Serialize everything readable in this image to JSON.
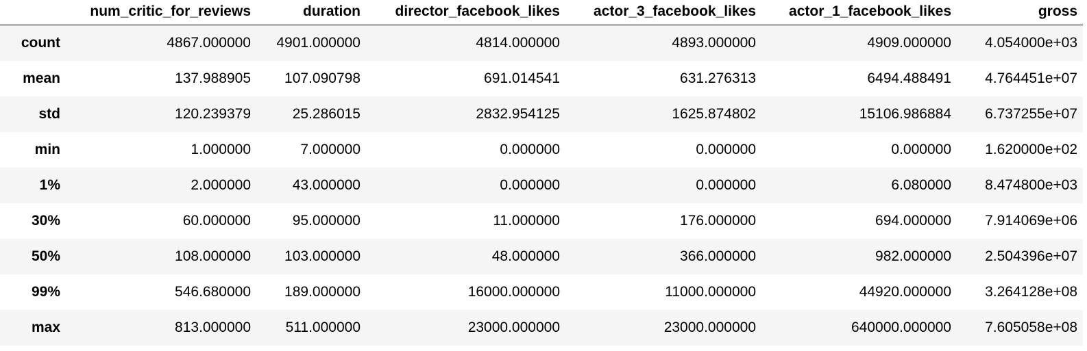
{
  "dataframe": {
    "columns": [
      "num_critic_for_reviews",
      "duration",
      "director_facebook_likes",
      "actor_3_facebook_likes",
      "actor_1_facebook_likes",
      "gross"
    ],
    "rows": [
      {
        "label": "count",
        "cells": [
          "4867.000000",
          "4901.000000",
          "4814.000000",
          "4893.000000",
          "4909.000000",
          "4.054000e+03"
        ]
      },
      {
        "label": "mean",
        "cells": [
          "137.988905",
          "107.090798",
          "691.014541",
          "631.276313",
          "6494.488491",
          "4.764451e+07"
        ]
      },
      {
        "label": "std",
        "cells": [
          "120.239379",
          "25.286015",
          "2832.954125",
          "1625.874802",
          "15106.986884",
          "6.737255e+07"
        ]
      },
      {
        "label": "min",
        "cells": [
          "1.000000",
          "7.000000",
          "0.000000",
          "0.000000",
          "0.000000",
          "1.620000e+02"
        ]
      },
      {
        "label": "1%",
        "cells": [
          "2.000000",
          "43.000000",
          "0.000000",
          "0.000000",
          "6.080000",
          "8.474800e+03"
        ]
      },
      {
        "label": "30%",
        "cells": [
          "60.000000",
          "95.000000",
          "11.000000",
          "176.000000",
          "694.000000",
          "7.914069e+06"
        ]
      },
      {
        "label": "50%",
        "cells": [
          "108.000000",
          "103.000000",
          "48.000000",
          "366.000000",
          "982.000000",
          "2.504396e+07"
        ]
      },
      {
        "label": "99%",
        "cells": [
          "546.680000",
          "189.000000",
          "16000.000000",
          "11000.000000",
          "44920.000000",
          "3.264128e+08"
        ]
      },
      {
        "label": "max",
        "cells": [
          "813.000000",
          "511.000000",
          "23000.000000",
          "23000.000000",
          "640000.000000",
          "7.605058e+08"
        ]
      }
    ]
  }
}
